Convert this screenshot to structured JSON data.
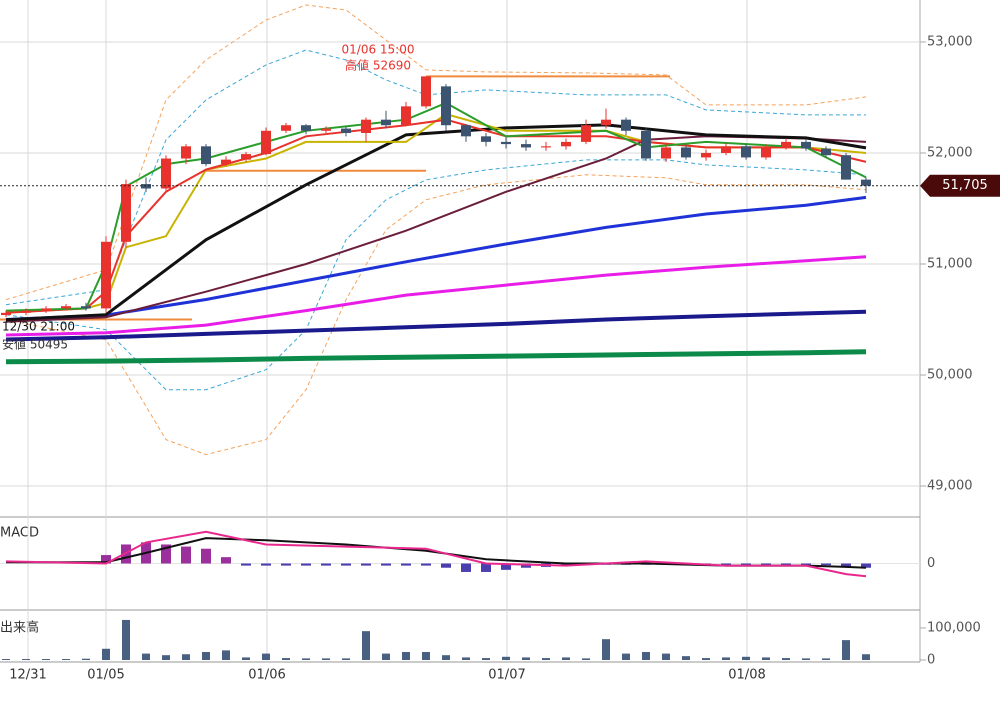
{
  "chart_data": [
    {
      "type": "candlestick",
      "x": [
        0,
        2,
        4,
        6,
        8,
        10,
        12,
        14,
        16,
        18,
        20,
        22,
        24,
        26,
        28,
        30,
        32,
        34,
        36,
        38,
        40,
        42,
        44,
        46,
        48,
        50,
        52,
        54,
        56,
        58,
        60,
        62,
        64,
        66,
        68,
        70,
        72,
        74,
        76,
        78,
        80,
        82,
        84,
        86
      ],
      "open": [
        50540,
        50560,
        50580,
        50600,
        50620,
        50600,
        51200,
        51720,
        51680,
        51950,
        52060,
        51900,
        51940,
        51990,
        52200,
        52250,
        52200,
        52220,
        52180,
        52300,
        52250,
        52420,
        52600,
        52250,
        52150,
        52100,
        52080,
        52050,
        52060,
        52100,
        52250,
        52300,
        52200,
        51950,
        52050,
        51960,
        52000,
        52060,
        51960,
        52050,
        52100,
        52040,
        51980,
        51760
      ],
      "high": [
        50580,
        50600,
        50620,
        50640,
        50650,
        51250,
        51760,
        51780,
        51980,
        52080,
        52080,
        51970,
        52010,
        52230,
        52270,
        52260,
        52240,
        52240,
        52320,
        52380,
        52460,
        52690,
        52620,
        52260,
        52180,
        52140,
        52120,
        52100,
        52130,
        52300,
        52400,
        52320,
        52220,
        52080,
        52070,
        52030,
        52090,
        52080,
        52080,
        52130,
        52120,
        52060,
        52000,
        51780
      ],
      "low": [
        50520,
        50540,
        50560,
        50580,
        50580,
        50560,
        51150,
        51650,
        51660,
        51900,
        51880,
        51880,
        51920,
        51980,
        52180,
        52170,
        52180,
        52150,
        52100,
        52220,
        52240,
        52400,
        52200,
        52100,
        52060,
        52040,
        52020,
        52020,
        52030,
        52080,
        52220,
        52160,
        51930,
        51920,
        51940,
        51930,
        51980,
        51940,
        51940,
        52030,
        52020,
        51960,
        51760,
        51640
      ],
      "close": [
        50560,
        50580,
        50600,
        50620,
        50600,
        51200,
        51720,
        51680,
        51950,
        52060,
        51900,
        51940,
        51990,
        52200,
        52250,
        52200,
        52220,
        52180,
        52300,
        52250,
        52420,
        52690,
        52250,
        52150,
        52100,
        52080,
        52050,
        52060,
        52100,
        52250,
        52300,
        52200,
        51950,
        52050,
        51960,
        52000,
        52060,
        51960,
        52050,
        52100,
        52040,
        51980,
        51760,
        51705
      ],
      "up_color": "#e8322d",
      "down_color": "#3d5470",
      "xlim": [
        -0.6,
        91.4
      ],
      "xticks": [
        {
          "value": 2.2,
          "label": "12/31"
        },
        {
          "value": 10,
          "label": "01/05"
        },
        {
          "value": 26.1,
          "label": "01/06"
        },
        {
          "value": 50.1,
          "label": "01/07"
        },
        {
          "value": 74.1,
          "label": "01/08"
        }
      ],
      "ylim": [
        48721,
        53378
      ],
      "yticks": [
        {
          "value": 49000,
          "label": "49,000"
        },
        {
          "value": 50000,
          "label": "50,000"
        },
        {
          "value": 51000,
          "label": "51,000"
        },
        {
          "value": 52000,
          "label": "52,000"
        },
        {
          "value": 53000,
          "label": "53,000"
        }
      ],
      "grid": true,
      "lines": [
        {
          "color": "#f5a25a",
          "width": 1,
          "dash": true,
          "x": [
            0,
            10,
            16,
            20,
            26,
            30,
            34,
            38,
            42,
            48,
            58,
            66,
            70,
            80,
            86
          ],
          "values": [
            50678,
            50948,
            52478,
            52838,
            53198,
            53333,
            53288,
            53018,
            52748,
            52730,
            52721,
            52703,
            52433,
            52433,
            52505
          ]
        },
        {
          "color": "#f5a25a",
          "width": 1,
          "dash": true,
          "x": [
            0,
            10,
            16,
            20,
            26,
            30,
            34,
            38,
            42,
            48,
            58,
            66,
            70,
            80,
            86
          ],
          "values": [
            50498,
            50318,
            49418,
            49283,
            49418,
            49868,
            50678,
            51308,
            51578,
            51713,
            51803,
            51776,
            51713,
            51713,
            51668
          ]
        },
        {
          "color": "#3aa6d8",
          "width": 1,
          "dash": true,
          "x": [
            0,
            10,
            16,
            20,
            26,
            30,
            34,
            38,
            42,
            48,
            58,
            66,
            70,
            80,
            86
          ],
          "values": [
            50633,
            50768,
            52118,
            52478,
            52793,
            52928,
            52838,
            52658,
            52523,
            52568,
            52523,
            52523,
            52388,
            52343,
            52343
          ]
        },
        {
          "color": "#3aa6d8",
          "width": 1,
          "dash": true,
          "x": [
            0,
            10,
            16,
            20,
            26,
            30,
            34,
            38,
            42,
            48,
            58,
            66,
            70,
            80,
            86
          ],
          "values": [
            50543,
            50408,
            49868,
            49868,
            50048,
            50408,
            51218,
            51578,
            51758,
            51848,
            51938,
            51938,
            51893,
            51848,
            51803
          ]
        },
        {
          "color": "#0c8a4a",
          "width": 5,
          "x": [
            0,
            10,
            20,
            30,
            40,
            50,
            60,
            70,
            80,
            86
          ],
          "values": [
            50120,
            50125,
            50135,
            50150,
            50160,
            50170,
            50180,
            50190,
            50200,
            50210
          ]
        },
        {
          "color": "#1a1a8c",
          "width": 4,
          "x": [
            0,
            10,
            20,
            30,
            40,
            50,
            60,
            70,
            80,
            86
          ],
          "values": [
            50320,
            50340,
            50370,
            50400,
            50430,
            50460,
            50500,
            50530,
            50555,
            50570
          ]
        },
        {
          "color": "#e81ee8",
          "width": 3,
          "x": [
            0,
            10,
            20,
            30,
            40,
            50,
            60,
            70,
            80,
            86
          ],
          "values": [
            50360,
            50380,
            50450,
            50580,
            50720,
            50810,
            50900,
            50970,
            51030,
            51065
          ]
        },
        {
          "color": "#1e32d8",
          "width": 3,
          "x": [
            0,
            10,
            20,
            30,
            40,
            50,
            60,
            70,
            80,
            86
          ],
          "values": [
            50500,
            50540,
            50680,
            50850,
            51020,
            51180,
            51330,
            51450,
            51530,
            51600
          ]
        },
        {
          "color": "#6b1e3c",
          "width": 2,
          "x": [
            0,
            10,
            20,
            30,
            40,
            50,
            60,
            64,
            70,
            80,
            86
          ],
          "values": [
            50480,
            50520,
            50750,
            51000,
            51300,
            51650,
            51950,
            52120,
            52150,
            52130,
            52100
          ]
        },
        {
          "color": "#111111",
          "width": 3,
          "x": [
            0,
            10,
            20,
            30,
            40,
            50,
            60,
            70,
            80,
            86
          ],
          "values": [
            50498,
            50543,
            51218,
            51713,
            52163,
            52226,
            52253,
            52163,
            52136,
            52046
          ]
        },
        {
          "color": "#c8b400",
          "width": 2,
          "x": [
            0,
            8,
            10,
            12,
            16,
            20,
            26,
            30,
            40,
            44,
            50,
            60,
            64,
            70,
            80,
            86
          ],
          "values": [
            50560,
            50600,
            50650,
            51150,
            51250,
            51850,
            51950,
            52100,
            52100,
            52350,
            52200,
            52200,
            52100,
            52050,
            52050,
            52000
          ]
        },
        {
          "color": "#e8322d",
          "width": 2,
          "x": [
            0,
            8,
            10,
            12,
            16,
            20,
            26,
            30,
            40,
            44,
            50,
            60,
            64,
            70,
            80,
            86
          ],
          "values": [
            50560,
            50600,
            50750,
            51250,
            51650,
            51850,
            52000,
            52150,
            52250,
            52300,
            52150,
            52150,
            52100,
            52050,
            52050,
            51920
          ]
        },
        {
          "color": "#2a9d2a",
          "width": 2,
          "x": [
            0,
            8,
            10,
            12,
            16,
            20,
            26,
            30,
            40,
            44,
            50,
            60,
            64,
            70,
            80,
            86
          ],
          "values": [
            50580,
            50600,
            51000,
            51700,
            51900,
            51950,
            52100,
            52200,
            52300,
            52450,
            52150,
            52200,
            52050,
            52100,
            52050,
            51780
          ]
        }
      ],
      "hlines": [
        {
          "color": "#f08a3c",
          "value": 52690,
          "x": [
            42,
            66.4
          ]
        },
        {
          "color": "#f08a3c",
          "value": 51840,
          "x": [
            20,
            42
          ]
        },
        {
          "color": "#f08a3c",
          "value": 50500,
          "x": [
            -0.6,
            18.6
          ]
        }
      ],
      "annotations": [
        "01/06 15:00",
        "高値 52690",
        "12/30 21:00",
        "安値 50495"
      ],
      "current_price": {
        "value": 51705,
        "label": "51,705"
      }
    },
    {
      "type": "macd",
      "title": "MACD",
      "x": [
        0,
        10,
        14,
        20,
        26,
        34,
        42,
        48,
        56,
        64,
        72,
        80,
        84,
        86
      ],
      "macd": [
        5,
        0,
        50,
        75,
        45,
        40,
        35,
        0,
        -5,
        5,
        -5,
        -5,
        -25,
        -30
      ],
      "signal": [
        3,
        3,
        25,
        60,
        55,
        45,
        30,
        10,
        0,
        0,
        -5,
        -5,
        -8,
        -10
      ],
      "hist_x": [
        10,
        12,
        14,
        16,
        18,
        20,
        22,
        24,
        26,
        28,
        30,
        32,
        34,
        36,
        38,
        40,
        42,
        44,
        46,
        48,
        50,
        52,
        54,
        56,
        58,
        60,
        62,
        64,
        66,
        68,
        70,
        72,
        74,
        76,
        78,
        80,
        82,
        84,
        86
      ],
      "hist": [
        20,
        45,
        50,
        45,
        40,
        35,
        15,
        -5,
        -5,
        -5,
        -5,
        -5,
        -5,
        -5,
        -5,
        -5,
        -5,
        -10,
        -20,
        -20,
        -15,
        -10,
        -8,
        -6,
        -4,
        -3,
        -3,
        -3,
        -3,
        -4,
        -4,
        -3,
        -3,
        -3,
        -3,
        -3,
        -4,
        -8,
        -10
      ],
      "macd_color": "#e8288c",
      "signal_color": "#111111",
      "pos_color": "#9b2f9b",
      "neg_color": "#4b3fb0",
      "ylim": [
        -110,
        110
      ],
      "yticks": [
        0
      ]
    },
    {
      "type": "bar",
      "title": "出来高",
      "x": [
        0,
        2,
        4,
        6,
        8,
        10,
        12,
        14,
        16,
        18,
        20,
        22,
        24,
        26,
        28,
        30,
        32,
        34,
        36,
        38,
        40,
        42,
        44,
        46,
        48,
        50,
        52,
        54,
        56,
        58,
        60,
        62,
        64,
        66,
        68,
        70,
        72,
        74,
        76,
        78,
        80,
        82,
        84,
        86
      ],
      "values": [
        3000,
        3000,
        3000,
        3000,
        4000,
        35000,
        125000,
        20000,
        15000,
        18000,
        25000,
        30000,
        8000,
        20000,
        6000,
        5000,
        5000,
        5000,
        90000,
        20000,
        25000,
        25000,
        15000,
        8000,
        6000,
        10000,
        8000,
        6000,
        8000,
        5000,
        65000,
        20000,
        25000,
        20000,
        12000,
        6000,
        8000,
        10000,
        8000,
        6000,
        5000,
        5000,
        62000,
        18000
      ],
      "color": "#4a6080",
      "ylim": [
        0,
        156000
      ],
      "yticks": [
        0,
        {
          "value": 100000,
          "label": "100,000"
        }
      ]
    }
  ]
}
